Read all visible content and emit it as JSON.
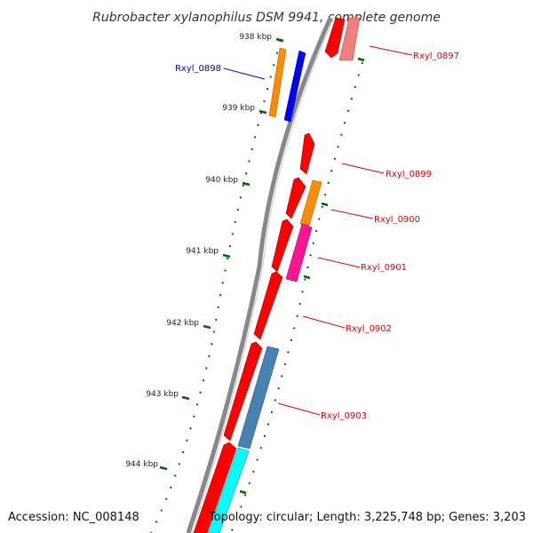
{
  "title": "Rubrobacter xylanophilus DSM 9941, complete genome",
  "footer": {
    "accession": "Accession: NC_008148",
    "topology": "Topology: circular; Length: 3,225,748 bp; Genes: 3,203"
  },
  "ticks": [
    "938 kbp",
    "939 kbp",
    "940 kbp",
    "941 kbp",
    "942 kbp",
    "943 kbp",
    "944 kbp"
  ],
  "gene_labels": [
    {
      "text": "Rxyl_0897",
      "color": "#dd0000"
    },
    {
      "text": "Rxyl_0898",
      "color": "#0000cc"
    },
    {
      "text": "Rxyl_0899",
      "color": "#dd0000"
    },
    {
      "text": "Rxyl_0900",
      "color": "#dd0000"
    },
    {
      "text": "Rxyl_0901",
      "color": "#dd0000"
    },
    {
      "text": "Rxyl_0902",
      "color": "#dd0000"
    },
    {
      "text": "Rxyl_0903",
      "color": "#dd0000"
    }
  ],
  "colors": {
    "backbone": "#888888",
    "cds": "#ff0000",
    "cds_light": "#f08080",
    "orange": "#ff8c00",
    "blue": "#0000ff",
    "pink": "#ff1493",
    "steel": "#4682b4",
    "cyan": "#00ffff",
    "dots": "#006400"
  }
}
